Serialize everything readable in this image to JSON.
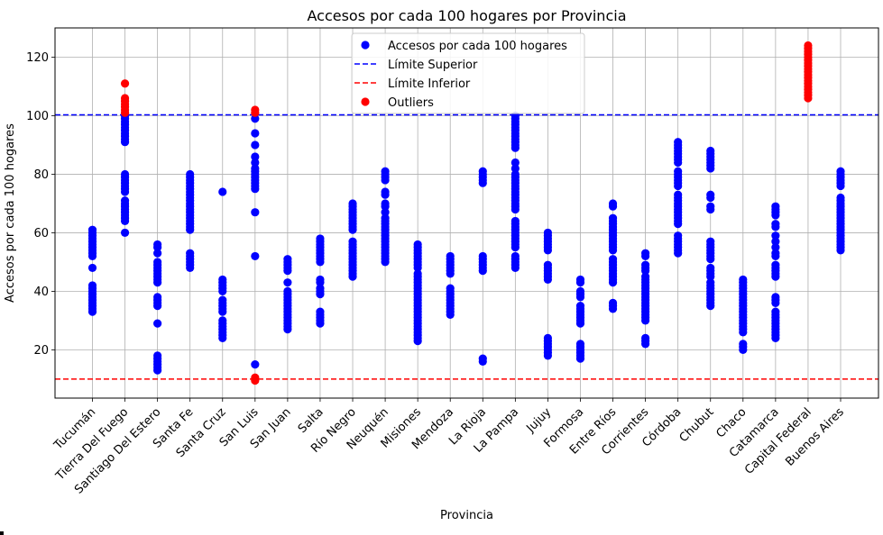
{
  "chart_data": {
    "type": "scatter",
    "title": "Accesos por cada 100 hogares por Provincia",
    "xlabel": "Provincia",
    "ylabel": "Accesos por cada 100 hogares",
    "ylim": [
      3.5,
      130
    ],
    "yticks": [
      20,
      40,
      60,
      80,
      100,
      120
    ],
    "grid": true,
    "legend_position": "top-center",
    "colors": {
      "points": "#0000ff",
      "outliers": "#ff0000",
      "upper": "#0000ff",
      "lower": "#ff0000"
    },
    "categories": [
      "Tucumán",
      "Tierra Del Fuego",
      "Santiago Del Estero",
      "Santa Fe",
      "Santa Cruz",
      "San Luis",
      "San Juan",
      "Salta",
      "Río Negro",
      "Neuquén",
      "Misiones",
      "Mendoza",
      "La Rioja",
      "La Pampa",
      "Jujuy",
      "Formosa",
      "Entre Ríos",
      "Corrientes",
      "Córdoba",
      "Chubut",
      "Chaco",
      "Catamarca",
      "Capital Federal",
      "Buenos Aires"
    ],
    "upper_limit": 100.3,
    "lower_limit": 10.0,
    "series": [
      {
        "name": "Accesos por cada 100 hogares",
        "points": [
          [
            "Tucumán",
            [
              61,
              60,
              59,
              58,
              57,
              56,
              55,
              54,
              53,
              52,
              48,
              42,
              41,
              40,
              39,
              38,
              37,
              36,
              35,
              34,
              33
            ]
          ],
          [
            "Tierra Del Fuego",
            [
              100,
              99,
              98,
              97,
              96,
              95,
              94,
              93,
              92,
              91,
              80,
              79,
              78,
              77,
              76,
              75,
              74,
              71,
              70,
              69,
              68,
              67,
              66,
              65,
              64,
              60
            ]
          ],
          [
            "Santiago Del Estero",
            [
              56,
              55,
              53,
              50,
              49,
              48,
              47,
              46,
              45,
              44,
              43,
              38,
              37,
              36,
              35,
              29,
              18,
              17,
              16,
              15,
              14,
              13
            ]
          ],
          [
            "Santa Fe",
            [
              80,
              79,
              78,
              77,
              76,
              75,
              74,
              73,
              72,
              71,
              70,
              69,
              68,
              67,
              66,
              65,
              64,
              63,
              62,
              61,
              53,
              52,
              51,
              50,
              49,
              48
            ]
          ],
          [
            "Santa Cruz",
            [
              74,
              44,
              43,
              42,
              41,
              40,
              37,
              36,
              35,
              34,
              33,
              30,
              29,
              28,
              27,
              26,
              25,
              24
            ]
          ],
          [
            "San Luis",
            [
              99,
              94,
              90,
              86,
              84,
              82,
              81,
              80,
              79,
              78,
              77,
              76,
              75,
              67,
              52,
              15
            ]
          ],
          [
            "San Juan",
            [
              51,
              50,
              49,
              48,
              47,
              43,
              40,
              39,
              38,
              37,
              36,
              35,
              34,
              33,
              32,
              31,
              30,
              29,
              28,
              27
            ]
          ],
          [
            "Salta",
            [
              58,
              57,
              56,
              55,
              54,
              53,
              52,
              51,
              50,
              44,
              43,
              41,
              40,
              39,
              33,
              32,
              31,
              30,
              29
            ]
          ],
          [
            "Río Negro",
            [
              70,
              69,
              68,
              67,
              66,
              65,
              64,
              63,
              62,
              61,
              57,
              56,
              55,
              54,
              53,
              52,
              51,
              50,
              49,
              48,
              47,
              46,
              45
            ]
          ],
          [
            "Neuquén",
            [
              81,
              80,
              79,
              78,
              74,
              73,
              70,
              69,
              67,
              65,
              64,
              63,
              62,
              61,
              60,
              59,
              58,
              57,
              56,
              55,
              54,
              53,
              52,
              51,
              50
            ]
          ],
          [
            "Misiones",
            [
              56,
              55,
              54,
              53,
              52,
              51,
              50,
              49,
              48,
              46,
              45,
              44,
              43,
              42,
              41,
              40,
              39,
              38,
              37,
              36,
              35,
              34,
              33,
              32,
              31,
              30,
              29,
              28,
              27,
              26,
              25,
              24,
              23
            ]
          ],
          [
            "Mendoza",
            [
              52,
              51,
              50,
              49,
              48,
              47,
              46,
              41,
              40,
              39,
              38,
              37,
              36,
              35,
              34,
              33,
              32
            ]
          ],
          [
            "La Rioja",
            [
              81,
              80,
              79,
              78,
              77,
              52,
              51,
              50,
              49,
              48,
              47,
              17,
              16
            ]
          ],
          [
            "La Pampa",
            [
              100,
              99,
              98,
              97,
              96,
              95,
              94,
              93,
              92,
              91,
              90,
              89,
              84,
              82,
              80,
              79,
              78,
              77,
              76,
              75,
              74,
              73,
              72,
              71,
              70,
              69,
              68,
              64,
              63,
              62,
              61,
              60,
              59,
              58,
              57,
              56,
              55,
              52,
              51,
              50,
              49,
              48
            ]
          ],
          [
            "Jujuy",
            [
              60,
              59,
              58,
              57,
              56,
              55,
              54,
              49,
              48,
              47,
              46,
              45,
              44,
              24,
              23,
              22,
              21,
              20,
              19,
              18
            ]
          ],
          [
            "Formosa",
            [
              44,
              43,
              40,
              39,
              38,
              35,
              34,
              33,
              32,
              31,
              30,
              29,
              22,
              21,
              20,
              19,
              18,
              17
            ]
          ],
          [
            "Entre Ríos",
            [
              70,
              69,
              65,
              64,
              63,
              62,
              61,
              60,
              59,
              58,
              57,
              56,
              55,
              54,
              51,
              50,
              49,
              48,
              47,
              46,
              45,
              44,
              43,
              36,
              35,
              34
            ]
          ],
          [
            "Corrientes",
            [
              53,
              52,
              49,
              48,
              47,
              45,
              44,
              43,
              42,
              41,
              40,
              39,
              38,
              37,
              36,
              35,
              34,
              33,
              32,
              31,
              30,
              24,
              23,
              22
            ]
          ],
          [
            "Córdoba",
            [
              91,
              90,
              89,
              88,
              87,
              86,
              85,
              84,
              81,
              80,
              79,
              78,
              77,
              76,
              73,
              72,
              71,
              70,
              69,
              68,
              67,
              66,
              65,
              64,
              63,
              59,
              58,
              57,
              56,
              55,
              54,
              53
            ]
          ],
          [
            "Chubut",
            [
              88,
              87,
              86,
              85,
              84,
              83,
              82,
              73,
              72,
              69,
              68,
              57,
              56,
              55,
              54,
              53,
              52,
              51,
              48,
              47,
              46,
              45,
              43,
              42,
              41,
              40,
              39,
              38,
              37,
              36,
              35
            ]
          ],
          [
            "Chaco",
            [
              44,
              43,
              42,
              41,
              40,
              39,
              38,
              37,
              36,
              35,
              34,
              33,
              32,
              31,
              30,
              29,
              28,
              27,
              26,
              22,
              21,
              20
            ]
          ],
          [
            "Catamarca",
            [
              69,
              68,
              67,
              66,
              63,
              62,
              59,
              57,
              55,
              53,
              52,
              49,
              48,
              47,
              46,
              45,
              38,
              37,
              36,
              33,
              32,
              31,
              30,
              29,
              28,
              27,
              26,
              25,
              24
            ]
          ],
          [
            "Buenos Aires",
            [
              81,
              80,
              79,
              78,
              77,
              76,
              72,
              71,
              70,
              69,
              68,
              67,
              66,
              65,
              64,
              63,
              62,
              61,
              60,
              59,
              58,
              57,
              56,
              55,
              54
            ]
          ]
        ]
      },
      {
        "name": "Outliers",
        "points": [
          [
            "Tierra Del Fuego",
            [
              111,
              106,
              105,
              104,
              103,
              102,
              101
            ]
          ],
          [
            "San Luis",
            [
              102,
              101,
              10.5,
              10,
              9.5
            ]
          ],
          [
            "Capital Federal",
            [
              124,
              123,
              122,
              121,
              120,
              119,
              118,
              117,
              116,
              115,
              114,
              113,
              112,
              111,
              110,
              109,
              108,
              107,
              106
            ]
          ]
        ]
      }
    ],
    "legend": [
      "Accesos por cada 100 hogares",
      "Límite Superior",
      "Límite Inferior",
      "Outliers"
    ]
  }
}
